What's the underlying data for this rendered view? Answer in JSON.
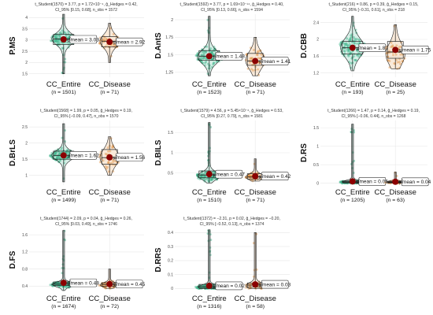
{
  "colors": {
    "entire": "#3cb48a",
    "disease": "#e39548",
    "mean": "#8b0000",
    "grid": "#e8e8e8",
    "axis": "#666666"
  },
  "chart_data": [
    {
      "type": "violin-box-scatter",
      "ylabel": "P.MS",
      "stats_lines": [
        "t_Student(1570) = 3.77, p = 1.72×10⁻⁴, ĝ_Hedges = 0.42,",
        "CI_95% [0.15, 0.68], n_obs = 1572"
      ],
      "yticks": [
        1.5,
        2.0,
        2.5,
        3.0,
        3.5,
        4.0
      ],
      "ylim": [
        1.35,
        4.15
      ],
      "categories": [
        "CC_Entire",
        "CC_Disease"
      ],
      "counts": [
        "(n = 1501)",
        "(n = 71)"
      ],
      "means": [
        3.03,
        2.92
      ],
      "mean_labels": [
        "μ̂mean = 3.03",
        "μ̂mean = 2.92"
      ],
      "entire": {
        "min": 1.5,
        "q1": 2.8,
        "median": 3.05,
        "q3": 3.25,
        "max": 4.15,
        "mode": 3.05,
        "spread": 0.25
      },
      "disease": {
        "min": 2.0,
        "q1": 2.7,
        "median": 2.95,
        "q3": 3.15,
        "max": 3.75,
        "mode": 2.95,
        "spread": 0.28
      }
    },
    {
      "type": "violin-box-scatter",
      "ylabel": "D.AntS",
      "stats_lines": [
        "t_Student(1592) = 3.77, p = 1.69×10⁻¹⁴, ĝ_Hedges = 0.40,",
        "CI_95% [0.13, 0.66], n_obs = 1594"
      ],
      "yticks": [
        1.25,
        1.5,
        1.75,
        2.0
      ],
      "ylim": [
        1.18,
        2.08
      ],
      "categories": [
        "CC_Entire",
        "CC_Disease"
      ],
      "counts": [
        "(n = 1523)",
        "(n = 71)"
      ],
      "means": [
        1.48,
        1.41
      ],
      "mean_labels": [
        "μ̂mean = 1.48",
        "μ̂mean = 1.41"
      ],
      "entire": {
        "min": 1.2,
        "q1": 1.42,
        "median": 1.48,
        "q3": 1.56,
        "max": 2.05,
        "mode": 1.47,
        "spread": 0.09
      },
      "disease": {
        "min": 1.2,
        "q1": 1.35,
        "median": 1.41,
        "q3": 1.52,
        "max": 1.75,
        "mode": 1.42,
        "spread": 0.12
      }
    },
    {
      "type": "violin-box-scatter",
      "ylabel": "D.CBB",
      "stats_lines": [
        "t_Student(216) = 0.86, p = 0.39, ĝ_Hedges = 0.15,",
        "CI_95% [−0.31, 0.61], n_obs = 218"
      ],
      "yticks": [
        1.2,
        1.6,
        2.0,
        2.4
      ],
      "ylim": [
        1.1,
        2.6
      ],
      "categories": [
        "CC_Entire",
        "CC_Disease"
      ],
      "counts": [
        "(n = 193)",
        "(n = 25)"
      ],
      "means": [
        1.8,
        1.75
      ],
      "mean_labels": [
        "μ̂mean = 1.80",
        "μ̂mean = 1.75"
      ],
      "entire": {
        "min": 1.25,
        "q1": 1.65,
        "median": 1.8,
        "q3": 1.95,
        "max": 2.55,
        "mode": 1.8,
        "spread": 0.22
      },
      "disease": {
        "min": 1.3,
        "q1": 1.55,
        "median": 1.7,
        "q3": 1.95,
        "max": 2.35,
        "mode": 1.65,
        "spread": 0.25
      }
    },
    {
      "type": "violin-box-scatter",
      "ylabel": "D.BrLS",
      "stats_lines": [
        "t_Student(1568) = 1.99, p = 0.05, ĝ_Hedges = 0.19,",
        "CI_95% [−0.09, 0.47], n_obs = 1570"
      ],
      "yticks": [
        1.0,
        1.5,
        2.0,
        2.5
      ],
      "ylim": [
        0.7,
        2.7
      ],
      "categories": [
        "CC_Entire",
        "CC_Disease"
      ],
      "counts": [
        "(n = 1499)",
        "(n = 71)"
      ],
      "means": [
        1.62,
        1.56
      ],
      "mean_labels": [
        "μ̂mean = 1.62",
        "μ̂mean = 1.56"
      ],
      "entire": {
        "min": 0.8,
        "q1": 1.5,
        "median": 1.62,
        "q3": 1.75,
        "max": 2.6,
        "mode": 1.62,
        "spread": 0.14
      },
      "disease": {
        "min": 1.0,
        "q1": 1.35,
        "median": 1.55,
        "q3": 1.8,
        "max": 2.2,
        "mode": 1.55,
        "spread": 0.25
      }
    },
    {
      "type": "violin-box-scatter",
      "ylabel": "D.BILS",
      "stats_lines": [
        "t_Student(1579) = 4.56, p = 5.45×10⁻⁶, ĝ_Hedges = 0.53,",
        "CI_95% [0.27, 0.79], n_obs = 1581"
      ],
      "yticks": [
        0.5,
        1.0,
        1.5
      ],
      "ylim": [
        0.2,
        1.8
      ],
      "categories": [
        "CC_Entire",
        "CC_Disease"
      ],
      "counts": [
        "(n = 1510)",
        "(n = 71)"
      ],
      "means": [
        0.47,
        0.42
      ],
      "mean_labels": [
        "μ̂mean = 0.47",
        "μ̂mean = 0.42"
      ],
      "entire": {
        "min": 0.25,
        "q1": 0.38,
        "median": 0.45,
        "q3": 0.55,
        "max": 1.75,
        "mode": 0.43,
        "spread": 0.09
      },
      "disease": {
        "min": 0.3,
        "q1": 0.35,
        "median": 0.4,
        "q3": 0.48,
        "max": 0.85,
        "mode": 0.4,
        "spread": 0.07
      }
    },
    {
      "type": "violin-box-scatter",
      "ylabel": "D.RS",
      "stats_lines": [
        "t_Student(1266) = 1.47, p = 0.14, ĝ_Hedges = 0.19,",
        "CI_95% [−0.06, 0.44], n_obs = 1268"
      ],
      "yticks": [
        0.0,
        0.5,
        1.0,
        1.5
      ],
      "ylim": [
        -0.05,
        1.7
      ],
      "categories": [
        "CC_Entire",
        "CC_Disease"
      ],
      "counts": [
        "(n = 1205)",
        "(n = 63)"
      ],
      "means": [
        0.05,
        0.04
      ],
      "mean_labels": [
        "μ̂mean = 0.05",
        "μ̂mean = 0.04"
      ],
      "entire": {
        "min": 0.0,
        "q1": 0.02,
        "median": 0.04,
        "q3": 0.06,
        "max": 1.6,
        "mode": 0.03,
        "spread": 0.04
      },
      "disease": {
        "min": 0.0,
        "q1": 0.02,
        "median": 0.03,
        "q3": 0.05,
        "max": 0.3,
        "mode": 0.03,
        "spread": 0.03
      }
    },
    {
      "type": "violin-box-scatter",
      "ylabel": "D.FS",
      "stats_lines": [
        "t_Student(1744) = 2.09, p = 0.04, ĝ_Hedges = 0.26,",
        "CI_95% [0.03, 0.49], n_obs = 1746"
      ],
      "yticks": [
        0.4,
        0.8,
        1.2,
        1.6
      ],
      "ylim": [
        0.28,
        1.75
      ],
      "categories": [
        "CC_Entire",
        "CC_Disease"
      ],
      "counts": [
        "(n = 1674)",
        "(n = 72)"
      ],
      "means": [
        0.48,
        0.45
      ],
      "mean_labels": [
        "μ̂mean = 0.48",
        "μ̂mean = 0.45"
      ],
      "entire": {
        "min": 0.3,
        "q1": 0.42,
        "median": 0.45,
        "q3": 0.5,
        "max": 1.7,
        "mode": 0.44,
        "spread": 0.05
      },
      "disease": {
        "min": 0.35,
        "q1": 0.4,
        "median": 0.44,
        "q3": 0.48,
        "max": 0.8,
        "mode": 0.43,
        "spread": 0.05
      }
    },
    {
      "type": "violin-box-scatter",
      "ylabel": "D.RRS",
      "stats_lines": [
        "t_Student(1372) = −2.31, p = 0.02, ĝ_Hedges = −0.20,",
        "CI_95% [−0.52, 0.13], n_obs = 1374"
      ],
      "yticks": [
        0.0,
        0.1,
        0.2,
        0.3,
        0.4
      ],
      "ylim": [
        -0.02,
        0.43
      ],
      "categories": [
        "CC_Entire",
        "CC_Disease"
      ],
      "counts": [
        "(n = 1316)",
        "(n = 58)"
      ],
      "means": [
        0.02,
        0.03
      ],
      "mean_labels": [
        "μ̂mean = 0.02",
        "μ̂mean = 0.03"
      ],
      "entire": {
        "min": 0.0,
        "q1": 0.005,
        "median": 0.015,
        "q3": 0.03,
        "max": 0.42,
        "mode": 0.01,
        "spread": 0.015
      },
      "disease": {
        "min": 0.0,
        "q1": 0.01,
        "median": 0.025,
        "q3": 0.04,
        "max": 0.4,
        "mode": 0.02,
        "spread": 0.02
      }
    }
  ]
}
